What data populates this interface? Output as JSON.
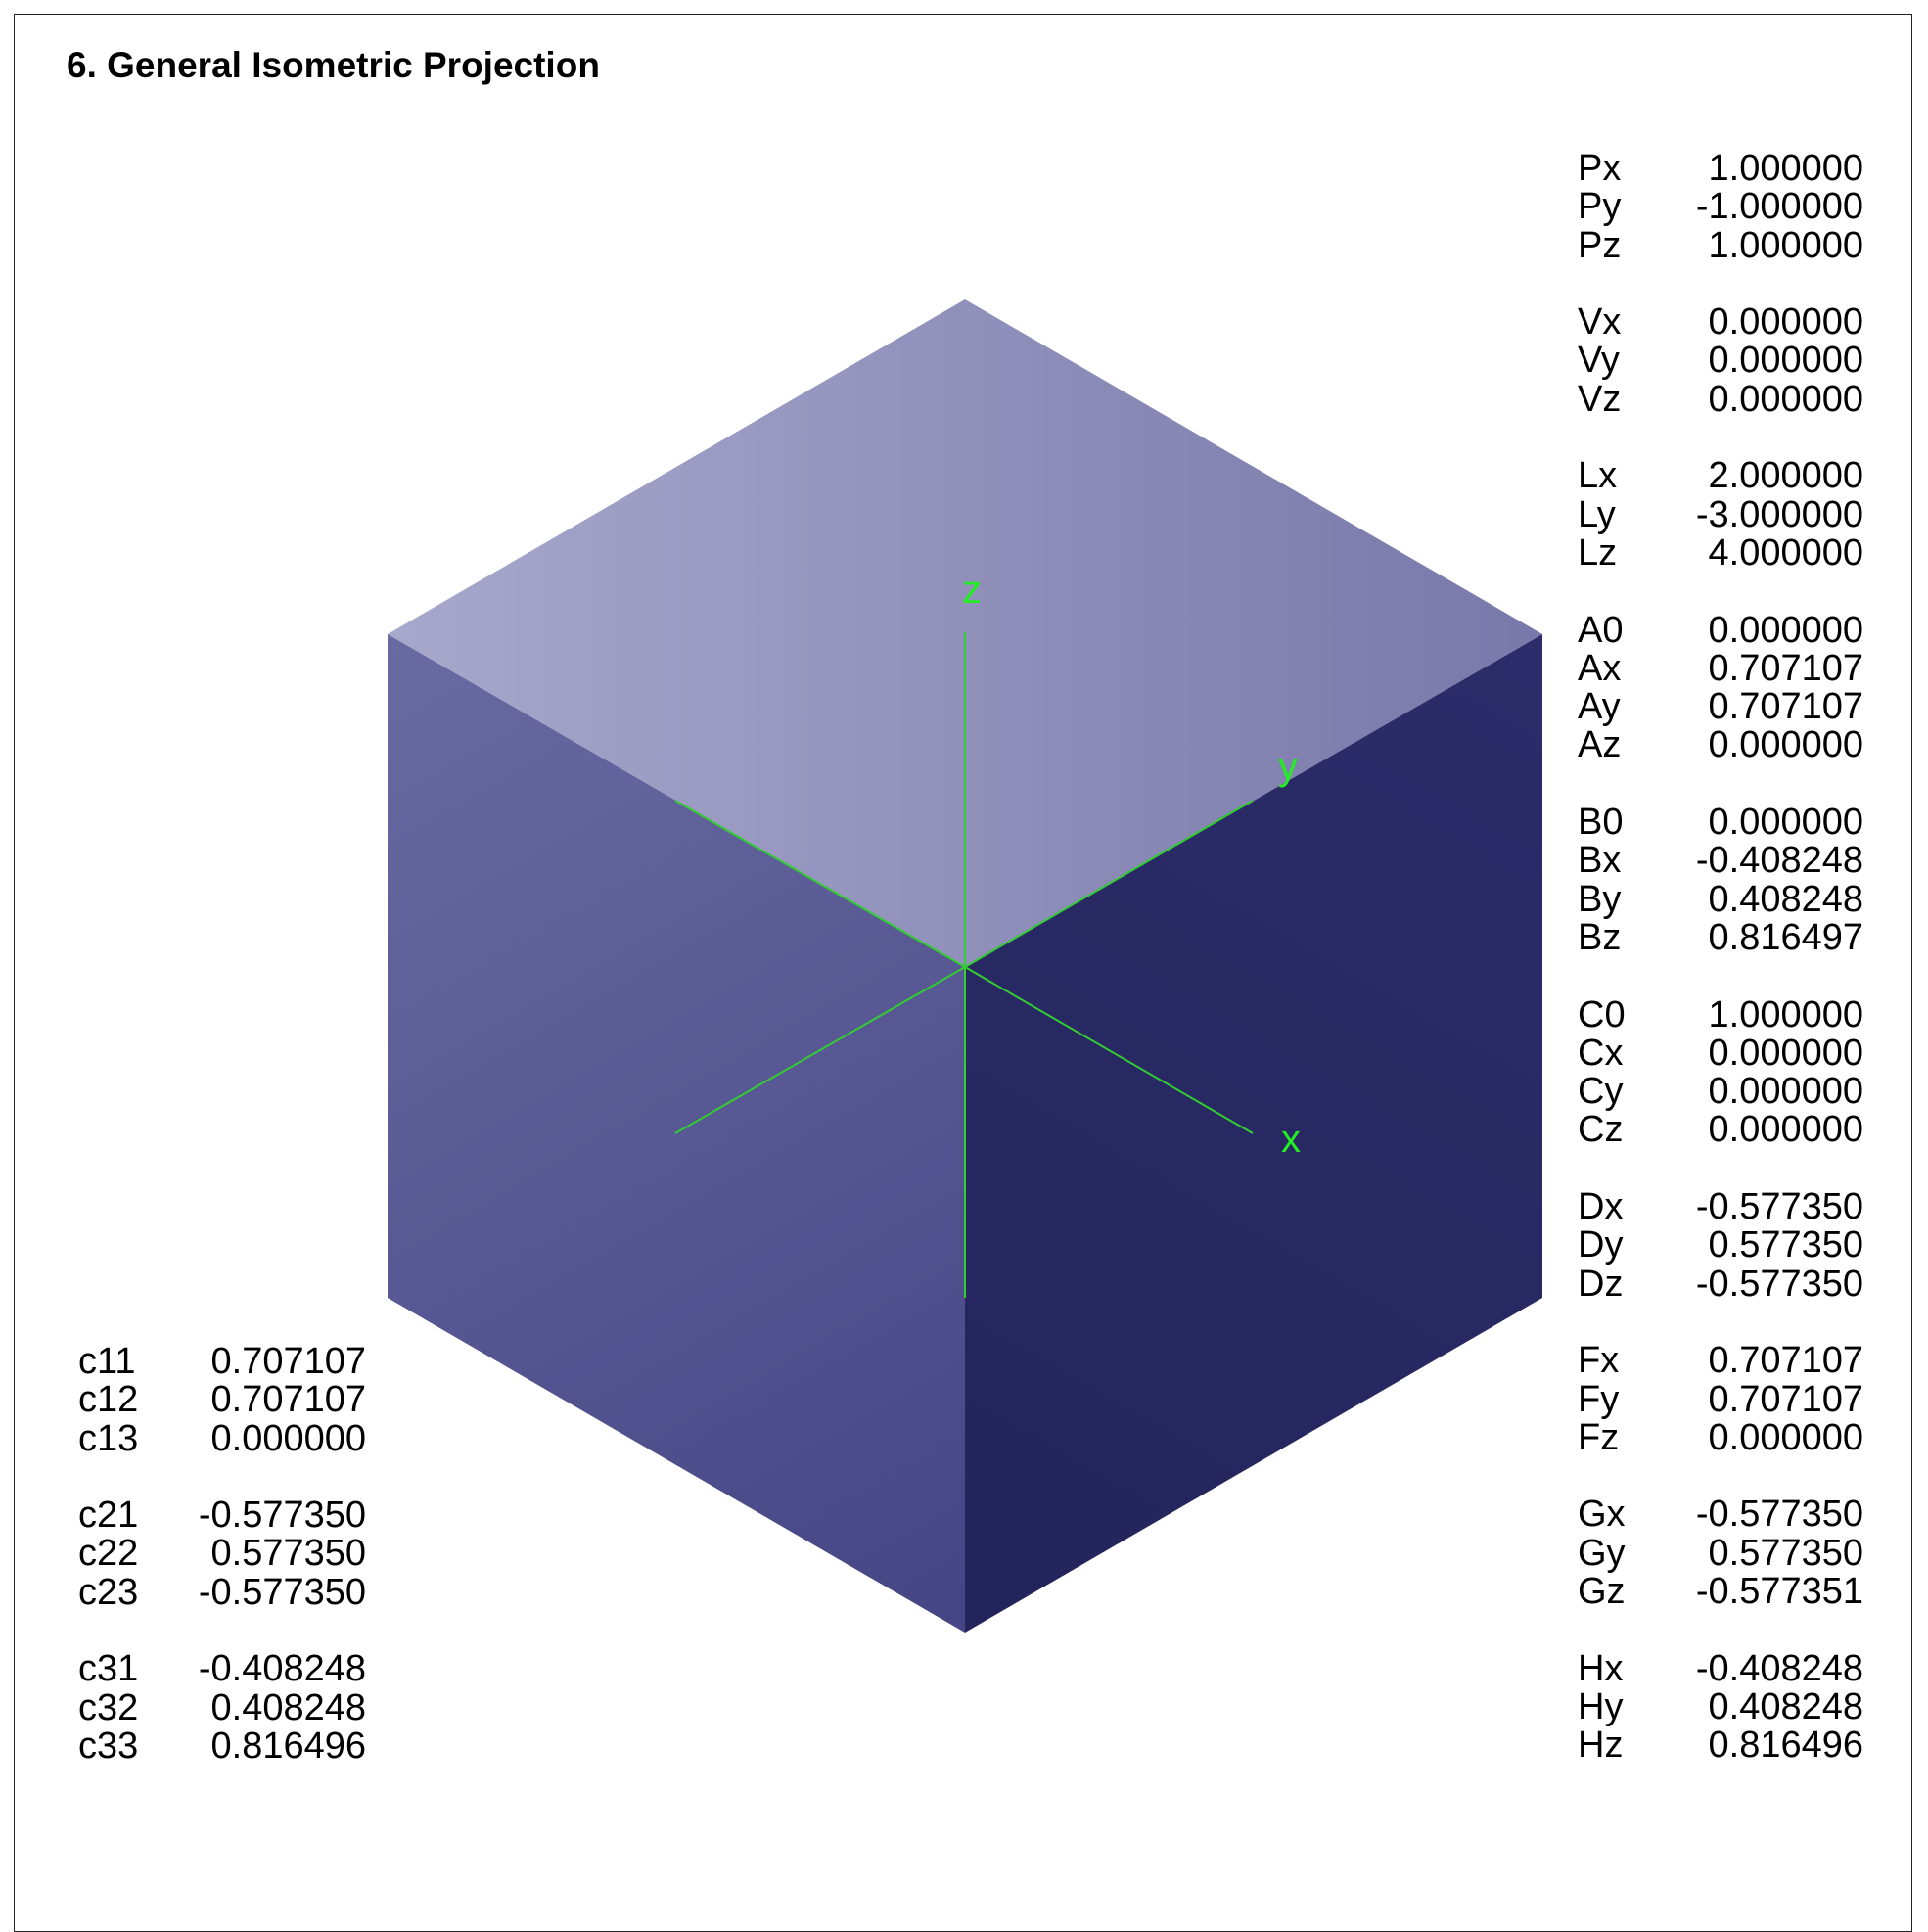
{
  "title": "6. General Isometric Projection",
  "colors": {
    "top_face_light": "#a8a8cc",
    "top_face_dark": "#7878aa",
    "left_face_light": "#6a6aa2",
    "left_face_dark": "#454585",
    "right_face_light": "#2c2c6a",
    "right_face_dark": "#24245c",
    "axis_color": "#33cc33",
    "axis_label_color": "#22ee22"
  },
  "axes": {
    "x_label": "x",
    "y_label": "y",
    "z_label": "z"
  },
  "right_panel": {
    "groups": [
      [
        {
          "label": "Px",
          "value": "1.000000"
        },
        {
          "label": "Py",
          "value": "-1.000000"
        },
        {
          "label": "Pz",
          "value": "1.000000"
        }
      ],
      [
        {
          "label": "Vx",
          "value": "0.000000"
        },
        {
          "label": "Vy",
          "value": "0.000000"
        },
        {
          "label": "Vz",
          "value": "0.000000"
        }
      ],
      [
        {
          "label": "Lx",
          "value": "2.000000"
        },
        {
          "label": "Ly",
          "value": "-3.000000"
        },
        {
          "label": "Lz",
          "value": "4.000000"
        }
      ],
      [
        {
          "label": "A0",
          "value": "0.000000"
        },
        {
          "label": "Ax",
          "value": "0.707107"
        },
        {
          "label": "Ay",
          "value": "0.707107"
        },
        {
          "label": "Az",
          "value": "0.000000"
        }
      ],
      [
        {
          "label": "B0",
          "value": "0.000000"
        },
        {
          "label": "Bx",
          "value": "-0.408248"
        },
        {
          "label": "By",
          "value": "0.408248"
        },
        {
          "label": "Bz",
          "value": "0.816497"
        }
      ],
      [
        {
          "label": "C0",
          "value": "1.000000"
        },
        {
          "label": "Cx",
          "value": "0.000000"
        },
        {
          "label": "Cy",
          "value": "0.000000"
        },
        {
          "label": "Cz",
          "value": "0.000000"
        }
      ],
      [
        {
          "label": "Dx",
          "value": "-0.577350"
        },
        {
          "label": "Dy",
          "value": "0.577350"
        },
        {
          "label": "Dz",
          "value": "-0.577350"
        }
      ],
      [
        {
          "label": "Fx",
          "value": "0.707107"
        },
        {
          "label": "Fy",
          "value": "0.707107"
        },
        {
          "label": "Fz",
          "value": "0.000000"
        }
      ],
      [
        {
          "label": "Gx",
          "value": "-0.577350"
        },
        {
          "label": "Gy",
          "value": "0.577350"
        },
        {
          "label": "Gz",
          "value": "-0.577351"
        }
      ],
      [
        {
          "label": "Hx",
          "value": "-0.408248"
        },
        {
          "label": "Hy",
          "value": "0.408248"
        },
        {
          "label": "Hz",
          "value": "0.816496"
        }
      ]
    ]
  },
  "left_panel": {
    "groups": [
      [
        {
          "label": "c11",
          "value": "0.707107"
        },
        {
          "label": "c12",
          "value": "0.707107"
        },
        {
          "label": "c13",
          "value": "0.000000"
        }
      ],
      [
        {
          "label": "c21",
          "value": "-0.577350"
        },
        {
          "label": "c22",
          "value": "0.577350"
        },
        {
          "label": "c23",
          "value": "-0.577350"
        }
      ],
      [
        {
          "label": "c31",
          "value": "-0.408248"
        },
        {
          "label": "c32",
          "value": "0.408248"
        },
        {
          "label": "c33",
          "value": "0.816496"
        }
      ]
    ]
  }
}
